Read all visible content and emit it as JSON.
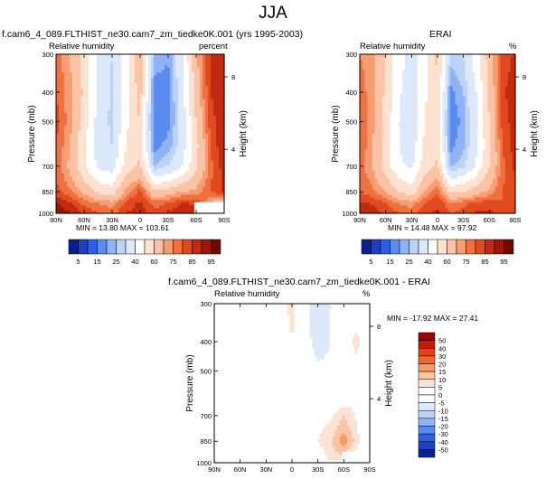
{
  "page": {
    "title": "JJA"
  },
  "chart_data": [
    {
      "type": "heatmap",
      "title": "f.cam6_4_089.FLTHIST_ne30.cam7_zm_tiedke0K.001 (yrs 1995-2003)",
      "left_label": "Relative humidity",
      "right_label": "percent",
      "ylabel": "Pressure (mb)",
      "ylabel_right": "Height (km)",
      "x_ticks": [
        "90N",
        "60N",
        "30N",
        "0",
        "30S",
        "60S",
        "90S"
      ],
      "y_ticks": [
        "300",
        "400",
        "500",
        "700",
        "850",
        "1000"
      ],
      "height_ticks": [
        "8",
        "4"
      ],
      "ylim": [
        1000,
        300
      ],
      "stats_text": "MIN = 13.80   MAX = 103.61",
      "colorbar": {
        "labels": [
          "5",
          "15",
          "25",
          "40",
          "60",
          "75",
          "85",
          "95"
        ],
        "colors": [
          "#0a1f8c",
          "#1c3fc4",
          "#2d5fe6",
          "#5a8cf0",
          "#8fb3f5",
          "#bcd3f8",
          "#dde9fb",
          "#ffffff",
          "#fde2d2",
          "#fbc3a5",
          "#f79c73",
          "#f0703f",
          "#e04a1f",
          "#c02a10",
          "#981706",
          "#6e0a02"
        ]
      },
      "field": {
        "description_of_values": "relative humidity (%) sampled on latitude x pressure grid",
        "lat": [
          90,
          75,
          60,
          45,
          30,
          15,
          0,
          -15,
          -30,
          -45,
          -60,
          -75,
          -90
        ],
        "pressure": [
          300,
          400,
          500,
          600,
          700,
          850,
          925,
          1000
        ],
        "values": [
          [
            78,
            70,
            55,
            40,
            30,
            45,
            70,
            25,
            20,
            40,
            68,
            85,
            88
          ],
          [
            80,
            72,
            58,
            38,
            28,
            45,
            65,
            15,
            18,
            35,
            65,
            85,
            90
          ],
          [
            82,
            72,
            55,
            36,
            28,
            48,
            60,
            15,
            18,
            34,
            60,
            82,
            90
          ],
          [
            80,
            70,
            52,
            35,
            30,
            50,
            58,
            18,
            22,
            35,
            56,
            80,
            90
          ],
          [
            78,
            68,
            52,
            38,
            35,
            55,
            62,
            25,
            30,
            40,
            58,
            78,
            88
          ],
          [
            82,
            76,
            68,
            58,
            55,
            72,
            82,
            62,
            65,
            70,
            72,
            80,
            86
          ],
          [
            90,
            85,
            78,
            75,
            72,
            82,
            86,
            78,
            80,
            85,
            84,
            70,
            60
          ],
          [
            96,
            90,
            85,
            80,
            78,
            85,
            88,
            82,
            85,
            90,
            88,
            60,
            50
          ]
        ]
      }
    },
    {
      "type": "heatmap",
      "title": "ERAI",
      "left_label": "Relative humidity",
      "right_label": "%",
      "ylabel": "Pressure (mb)",
      "ylabel_right": "Height (km)",
      "x_ticks": [
        "90N",
        "60N",
        "30N",
        "0",
        "30S",
        "60S",
        "90S"
      ],
      "y_ticks": [
        "300",
        "400",
        "500",
        "700",
        "850",
        "1000"
      ],
      "height_ticks": [
        "8",
        "4"
      ],
      "ylim": [
        1000,
        300
      ],
      "stats_text": "MIN = 14.48   MAX = 97.92",
      "colorbar": {
        "labels": [
          "5",
          "15",
          "25",
          "40",
          "60",
          "75",
          "85",
          "95"
        ],
        "colors": [
          "#0a1f8c",
          "#1c3fc4",
          "#2d5fe6",
          "#5a8cf0",
          "#8fb3f5",
          "#bcd3f8",
          "#dde9fb",
          "#ffffff",
          "#fde2d2",
          "#fbc3a5",
          "#f79c73",
          "#f0703f",
          "#e04a1f",
          "#c02a10",
          "#981706",
          "#6e0a02"
        ]
      },
      "field": {
        "description_of_values": "relative humidity (%) sampled on latitude x pressure grid",
        "lat": [
          90,
          75,
          60,
          45,
          30,
          15,
          0,
          -15,
          -30,
          -45,
          -60,
          -75,
          -90
        ],
        "pressure": [
          300,
          400,
          500,
          600,
          700,
          850,
          925,
          1000
        ],
        "values": [
          [
            75,
            72,
            58,
            45,
            35,
            45,
            62,
            28,
            30,
            45,
            65,
            82,
            86
          ],
          [
            78,
            72,
            58,
            42,
            32,
            48,
            60,
            18,
            25,
            40,
            62,
            84,
            88
          ],
          [
            80,
            72,
            56,
            40,
            32,
            50,
            58,
            15,
            22,
            38,
            60,
            82,
            88
          ],
          [
            80,
            70,
            55,
            40,
            34,
            52,
            58,
            18,
            24,
            38,
            58,
            80,
            88
          ],
          [
            78,
            70,
            55,
            42,
            38,
            56,
            62,
            24,
            28,
            42,
            60,
            78,
            86
          ],
          [
            80,
            76,
            70,
            60,
            55,
            70,
            80,
            58,
            60,
            66,
            72,
            80,
            84
          ],
          [
            86,
            84,
            80,
            75,
            72,
            80,
            84,
            76,
            78,
            82,
            82,
            80,
            80
          ],
          [
            90,
            88,
            84,
            80,
            78,
            84,
            86,
            80,
            82,
            86,
            86,
            84,
            82
          ]
        ]
      }
    },
    {
      "type": "heatmap",
      "title": "f.cam6_4_089.FLTHIST_ne30.cam7_zm_tiedke0K.001 - ERAI",
      "left_label": "Relative humidity",
      "right_label": "%",
      "ylabel": "Pressure (mb)",
      "ylabel_right": "Height (km)",
      "x_ticks": [
        "90N",
        "60N",
        "30N",
        "0",
        "30S",
        "60S",
        "90S"
      ],
      "y_ticks": [
        "300",
        "400",
        "500",
        "700",
        "850",
        "1000"
      ],
      "height_ticks": [
        "8",
        "4"
      ],
      "ylim": [
        1000,
        300
      ],
      "stats_text": "MIN = -17.92   MAX = 27.41",
      "colorbar": {
        "labels": [
          "50",
          "40",
          "30",
          "20",
          "15",
          "10",
          "5",
          "0",
          "-5",
          "-10",
          "-15",
          "-20",
          "-30",
          "-40",
          "-50"
        ],
        "colors": [
          "#990000",
          "#c21a08",
          "#e0401a",
          "#f2672c",
          "#f79a6a",
          "#fbc4a4",
          "#fde3d4",
          "#ffffff",
          "#ffffff",
          "#dde9fb",
          "#bcd3f8",
          "#8fb3f5",
          "#5a8cf0",
          "#2d5fe6",
          "#1c3fc4",
          "#0a1f8c"
        ]
      },
      "field": {
        "description_of_values": "relative humidity difference (%) sampled on latitude x pressure grid",
        "lat": [
          90,
          75,
          60,
          45,
          30,
          15,
          0,
          -15,
          -30,
          -45,
          -60,
          -75,
          -90
        ],
        "pressure": [
          300,
          400,
          500,
          600,
          700,
          850,
          925,
          1000
        ],
        "values": [
          [
            3,
            -2,
            -3,
            -5,
            -5,
            0,
            8,
            -3,
            -10,
            -5,
            3,
            3,
            2
          ],
          [
            2,
            0,
            0,
            -4,
            -4,
            -3,
            5,
            -3,
            -7,
            -5,
            3,
            6,
            2
          ],
          [
            2,
            0,
            -1,
            -4,
            -4,
            -2,
            2,
            0,
            -4,
            -4,
            0,
            4,
            -2
          ],
          [
            0,
            0,
            -3,
            -5,
            -4,
            -2,
            0,
            0,
            0,
            -3,
            0,
            4,
            -5
          ],
          [
            0,
            -2,
            -3,
            -4,
            -3,
            -1,
            0,
            1,
            2,
            4,
            10,
            4,
            -6
          ],
          [
            2,
            0,
            -2,
            -2,
            0,
            2,
            2,
            4,
            5,
            10,
            18,
            8,
            -5
          ],
          [
            4,
            1,
            -2,
            0,
            0,
            2,
            2,
            2,
            2,
            8,
            12,
            2,
            0
          ],
          [
            6,
            2,
            1,
            0,
            0,
            1,
            2,
            2,
            3,
            4,
            2,
            0,
            0
          ]
        ]
      }
    }
  ]
}
